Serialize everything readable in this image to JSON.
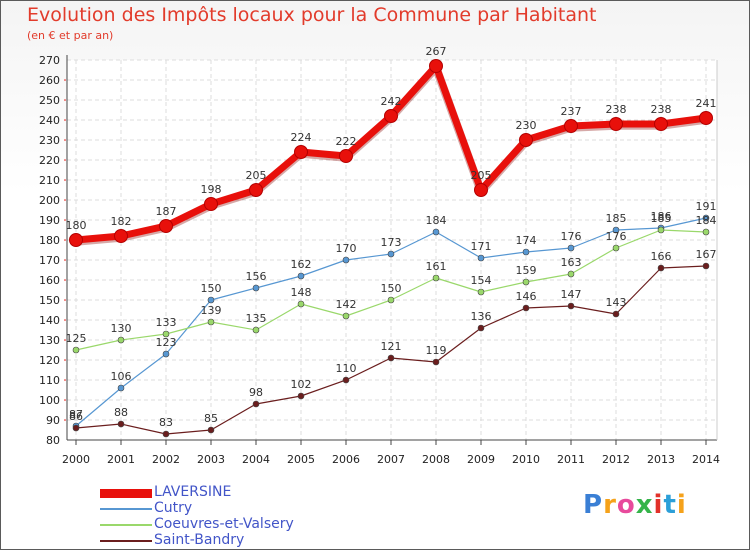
{
  "title": "Evolution des Impôts locaux pour la Commune par Habitant",
  "subtitle": "(en € et par an)",
  "logo": {
    "text": "Proxiti",
    "colors": [
      "#3a7fd5",
      "#f5a21b",
      "#e84a9c",
      "#35b44a",
      "#e2312a",
      "#2c9fd8",
      "#f5a21b"
    ]
  },
  "chart_data": {
    "type": "line",
    "title": "Evolution des Impôts locaux pour la Commune par Habitant",
    "subtitle": "(en € et par an)",
    "xlabel": "",
    "ylabel": "",
    "x": [
      2000,
      2001,
      2002,
      2003,
      2004,
      2005,
      2006,
      2007,
      2008,
      2009,
      2010,
      2011,
      2012,
      2013,
      2014
    ],
    "ylim": [
      80,
      270
    ],
    "yticks": [
      80,
      90,
      100,
      110,
      120,
      130,
      140,
      150,
      160,
      170,
      180,
      190,
      200,
      210,
      220,
      230,
      240,
      250,
      260,
      270
    ],
    "grid": true,
    "legend_position": "bottom-left",
    "series": [
      {
        "name": "LAVERSINE",
        "color": "#e8100b",
        "values": [
          180,
          182,
          187,
          198,
          205,
          224,
          222,
          242,
          267,
          205,
          230,
          237,
          238,
          238,
          241
        ]
      },
      {
        "name": "Cutry",
        "color": "#5797d2",
        "values": [
          87,
          106,
          123,
          150,
          156,
          162,
          170,
          173,
          184,
          171,
          174,
          176,
          185,
          186,
          191
        ]
      },
      {
        "name": "Coeuvres-et-Valsery",
        "color": "#9ad86b",
        "values": [
          125,
          130,
          133,
          139,
          135,
          148,
          142,
          150,
          161,
          154,
          159,
          163,
          176,
          185,
          184
        ]
      },
      {
        "name": "Saint-Bandry",
        "color": "#6b1e1e",
        "values": [
          86,
          88,
          83,
          85,
          98,
          102,
          110,
          121,
          119,
          136,
          146,
          147,
          143,
          166,
          167
        ]
      }
    ]
  }
}
